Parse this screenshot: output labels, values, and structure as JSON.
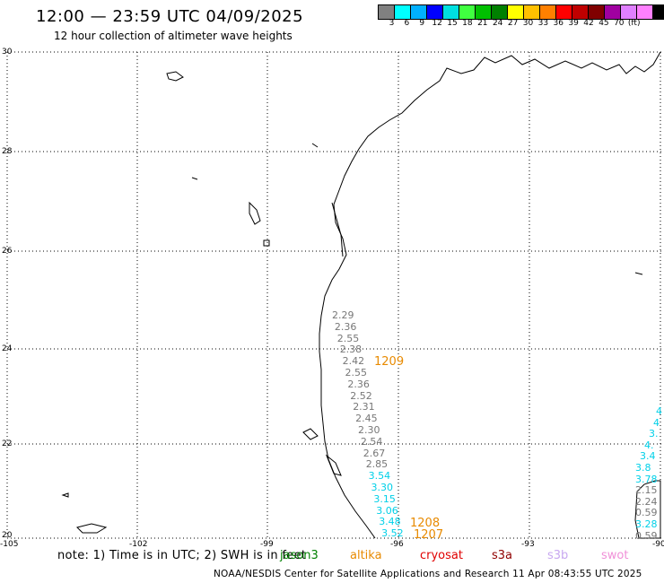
{
  "header": {
    "title": "12:00 — 23:59 UTC 04/09/2025",
    "subtitle": "12 hour collection of altimeter wave heights"
  },
  "colorbar": {
    "colors": [
      "#808080",
      "#00ffff",
      "#00b0ff",
      "#0000ff",
      "#00e0e0",
      "#40ff40",
      "#00c000",
      "#008000",
      "#ffff00",
      "#ffc000",
      "#ff8000",
      "#ff0000",
      "#c00000",
      "#800000",
      "#a000a0",
      "#e080ff",
      "#ff80ff",
      "#000000"
    ],
    "labels": [
      "3",
      "6",
      "9",
      "12",
      "15",
      "18",
      "21",
      "24",
      "27",
      "30",
      "33",
      "36",
      "39",
      "42",
      "45",
      "70",
      "(ft)"
    ]
  },
  "axes": {
    "lat_labels": [
      "30",
      "28",
      "26",
      "24",
      "22",
      "20"
    ],
    "lon_labels": [
      "-105",
      "-102",
      "-99",
      "-96",
      "-93",
      "-90"
    ]
  },
  "track_main": {
    "values": [
      "2.29",
      "2.36",
      "2.55",
      "2.38",
      "2.42",
      "2.55",
      "2.36",
      "2.52",
      "2.31",
      "2.45",
      "2.30",
      "2.54",
      "2.67",
      "2.85",
      "3.54",
      "3.30",
      "3.15",
      "3.06",
      "3.48",
      "3.52"
    ],
    "colors": [
      "gray",
      "gray",
      "gray",
      "gray",
      "gray",
      "gray",
      "gray",
      "gray",
      "gray",
      "gray",
      "gray",
      "gray",
      "gray",
      "gray",
      "cyan",
      "cyan",
      "cyan",
      "cyan",
      "cyan",
      "cyan"
    ]
  },
  "track_ids": [
    "1209",
    "1208",
    "1207"
  ],
  "track_right": {
    "values": [
      "4",
      "4",
      "3.",
      "4.",
      "3.4",
      "3.8",
      "3.78",
      "2.15",
      "2.24",
      "0.59",
      "3.28",
      "0.59"
    ],
    "colors": [
      "cyan",
      "cyan",
      "cyan",
      "cyan",
      "cyan",
      "cyan",
      "cyan",
      "gray",
      "gray",
      "gray",
      "cyan",
      "gray"
    ]
  },
  "footer": {
    "note": "note:  1) Time is in UTC;  2) SWH is in feet",
    "satellites": [
      {
        "name": "jason3",
        "color": "#008000"
      },
      {
        "name": "altika",
        "color": "#e88a00"
      },
      {
        "name": "cryosat",
        "color": "#e00000"
      },
      {
        "name": "s3a",
        "color": "#900000"
      },
      {
        "name": "s3b",
        "color": "#c8a8f0"
      },
      {
        "name": "swot",
        "color": "#f090d8"
      }
    ],
    "credit": "NOAA/NESDIS Center for Satellite Applications and Research     11 Apr 08:43:55 UTC 2025"
  }
}
